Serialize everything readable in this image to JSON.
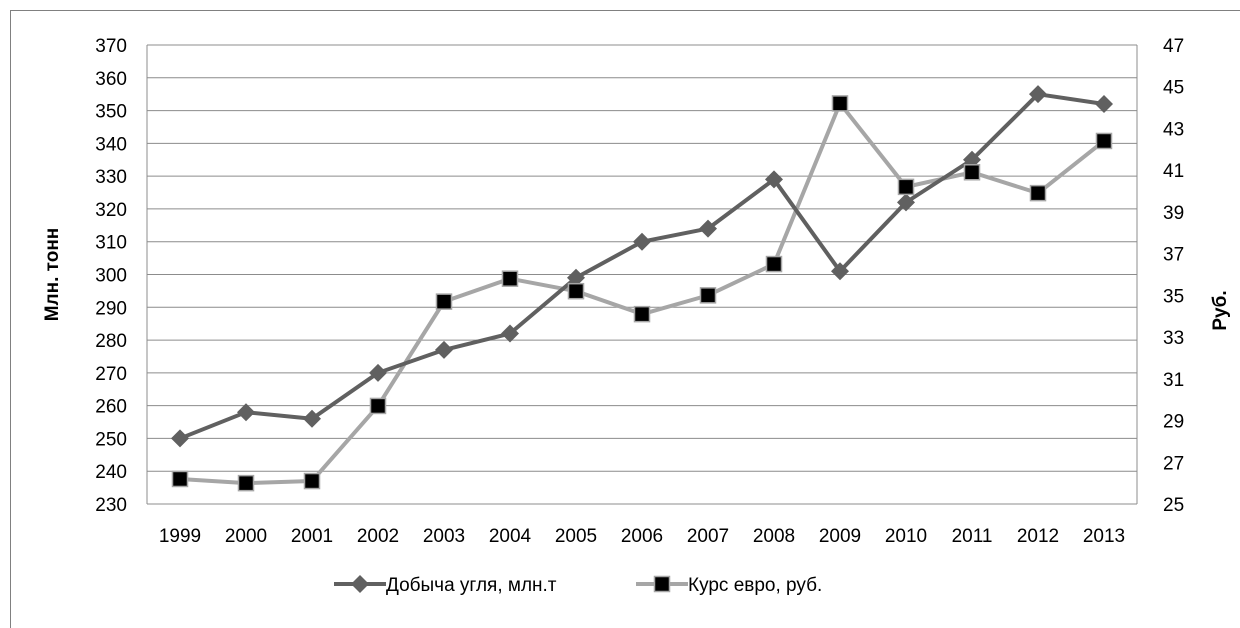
{
  "chart_data": {
    "type": "line",
    "title": "",
    "x": [
      "1999",
      "2000",
      "2001",
      "2002",
      "2003",
      "2004",
      "2005",
      "2006",
      "2007",
      "2008",
      "2009",
      "2010",
      "2011",
      "2012",
      "2013"
    ],
    "ylabel": "Млн. тонн",
    "y2label": "Руб.",
    "ylim": [
      230,
      370
    ],
    "y2lim": [
      25,
      47
    ],
    "yticks": [
      230,
      240,
      250,
      260,
      270,
      280,
      290,
      300,
      310,
      320,
      330,
      340,
      350,
      360,
      370
    ],
    "y2ticks": [
      25,
      27,
      29,
      31,
      33,
      35,
      37,
      39,
      41,
      43,
      45,
      47
    ],
    "grid": true,
    "legend_position": "bottom",
    "series": [
      {
        "name": "Добыча угля, млн.т",
        "axis": "left",
        "marker": "diamond",
        "color": "#606060",
        "values": [
          250,
          258,
          256,
          270,
          277,
          282,
          299,
          310,
          314,
          329,
          301,
          322,
          335,
          355,
          352
        ]
      },
      {
        "name": "Курс евро, руб.",
        "axis": "right",
        "marker": "square",
        "color": "#a6a6a6",
        "markerColor": "#000000",
        "values": [
          26.2,
          26.0,
          26.1,
          29.7,
          34.7,
          35.8,
          35.2,
          34.1,
          35.0,
          36.5,
          44.2,
          40.2,
          40.9,
          39.9,
          42.4
        ]
      }
    ]
  }
}
